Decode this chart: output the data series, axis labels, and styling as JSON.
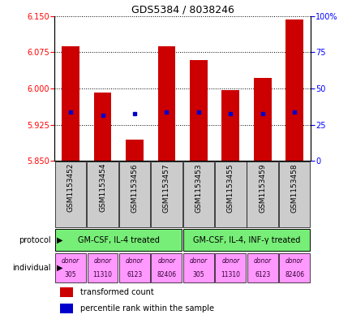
{
  "title": "GDS5384 / 8038246",
  "samples": [
    "GSM1153452",
    "GSM1153454",
    "GSM1153456",
    "GSM1153457",
    "GSM1153453",
    "GSM1153455",
    "GSM1153459",
    "GSM1153458"
  ],
  "bar_values": [
    6.087,
    5.992,
    5.895,
    6.087,
    6.058,
    5.997,
    6.022,
    6.143
  ],
  "percentile_values": [
    5.952,
    5.944,
    5.948,
    5.952,
    5.952,
    5.948,
    5.948,
    5.952
  ],
  "baseline": 5.85,
  "ylim_left": [
    5.85,
    6.15
  ],
  "yticks_left": [
    5.85,
    5.925,
    6.0,
    6.075,
    6.15
  ],
  "yticks_right": [
    0,
    25,
    50,
    75,
    100
  ],
  "ylim_right": [
    0,
    100
  ],
  "bar_color": "#cc0000",
  "percentile_color": "#0000cc",
  "bg_color": "#ffffff",
  "protocols": [
    "GM-CSF, IL-4 treated",
    "GM-CSF, IL-4, INF-γ treated"
  ],
  "protocol_color": "#77ee77",
  "individuals": [
    "donor\n305",
    "donor\n11310",
    "donor\n6123",
    "donor\n82406",
    "donor\n305",
    "donor\n11310",
    "donor\n6123",
    "donor\n82406"
  ],
  "individual_colors": [
    "#ff99ff",
    "#ff99ff",
    "#ff99ff",
    "#ff99ff",
    "#ff99ff",
    "#ff99ff",
    "#ff99ff",
    "#ff99ff"
  ],
  "sample_bg": "#cccccc",
  "title_fontsize": 9
}
